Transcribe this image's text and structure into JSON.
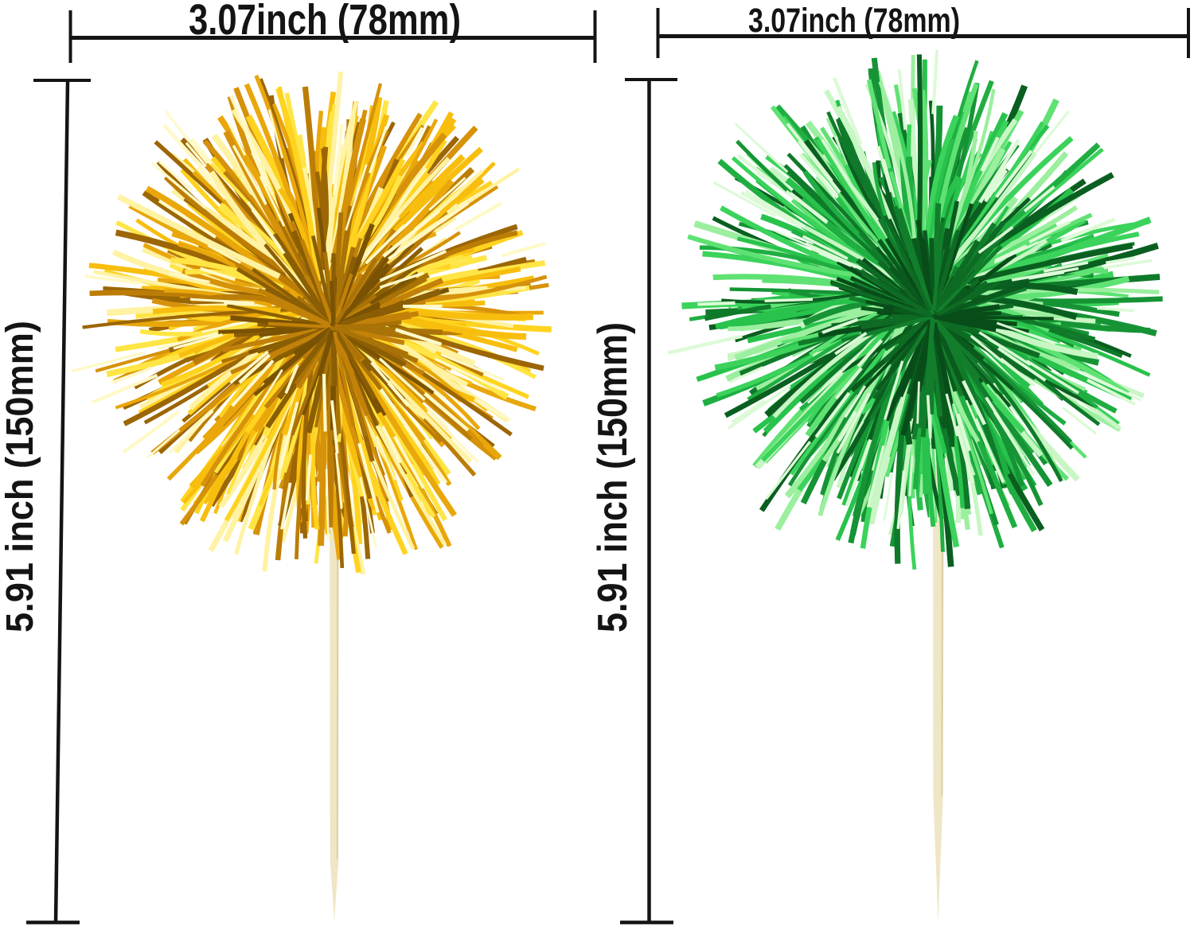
{
  "title": "Tinsel pom-pom picks size diagram",
  "background": "#ffffff",
  "dimension_style": {
    "line_color": "#141414",
    "text_color": "#141414"
  },
  "picks": [
    {
      "id": "gold-pick",
      "description": "gold tinsel pom pom pick on bamboo stick",
      "width_label": "3.07inch (78mm)",
      "height_label": "5.91 inch (150mm)",
      "tinsel_colors": [
        "#FFF2A3",
        "#FFE545",
        "#FFD31F",
        "#F8BE0E",
        "#E9A70B",
        "#D6920A",
        "#BC7D07",
        "#9C6605"
      ],
      "core_colors": [
        "#8A5E04",
        "#A97307",
        "#C28109",
        "#7A5203"
      ],
      "glint_color": "#FFF9C8",
      "stick_color": "#EFE6C6",
      "stick_edge_color": "#D9CB9F",
      "foil_wrap_color": "#F2BD10",
      "foil_wrap_highlight": "#FFE14E"
    },
    {
      "id": "green-pick",
      "description": "green tinsel pom pom pick on bamboo stick",
      "width_label": "3.07inch (78mm)",
      "height_label": "5.91 inch (150mm)",
      "tinsel_colors": [
        "#C8F6C4",
        "#9BEF9E",
        "#5FE273",
        "#3BD35B",
        "#28C24C",
        "#1FAE41",
        "#169435",
        "#0F7A2A",
        "#0A5F20"
      ],
      "core_colors": [
        "#0A5A1E",
        "#0E6B24",
        "#127E2C",
        "#084D19"
      ],
      "glint_color": "#DCFAD6",
      "stick_color": "#EFE6C6",
      "stick_edge_color": "#D9CB9F"
    }
  ]
}
